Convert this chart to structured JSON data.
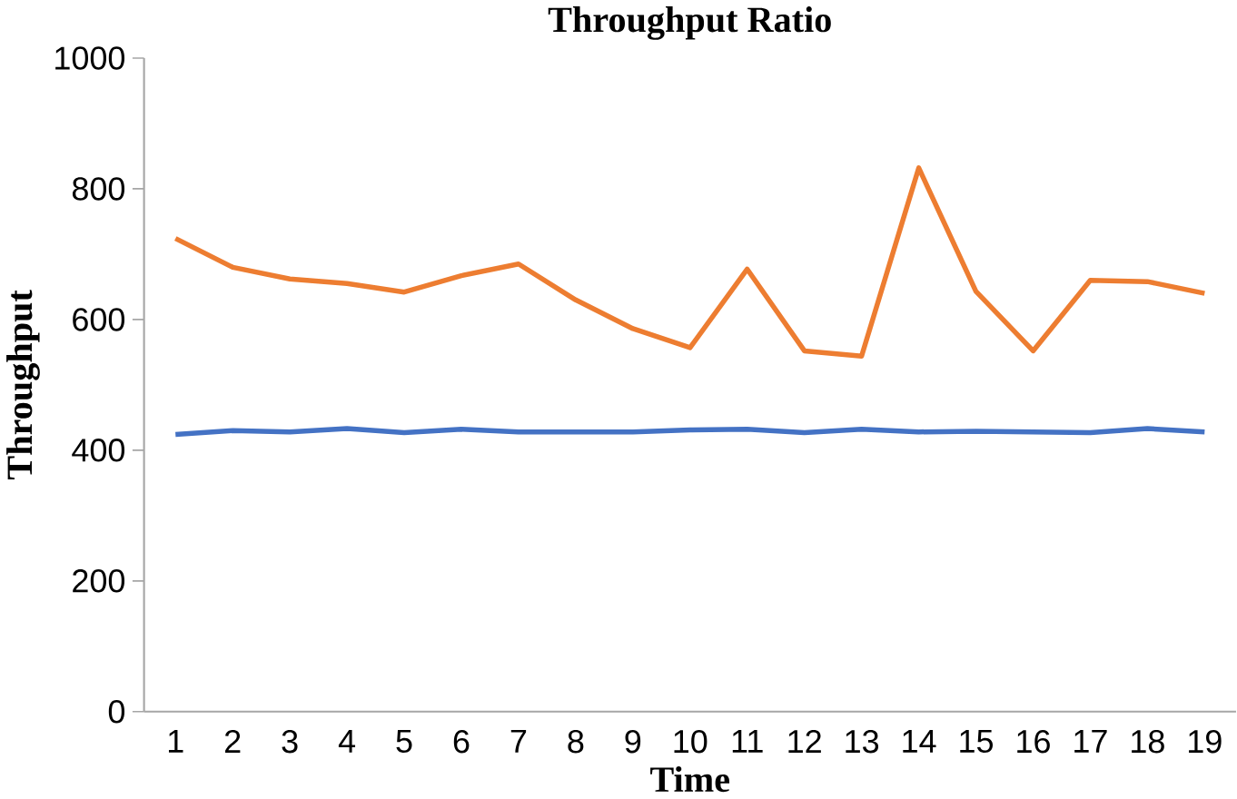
{
  "chart_data": {
    "type": "line",
    "title": "Throughput Ratio",
    "xlabel": "Time",
    "ylabel": "Throughput",
    "categories": [
      "1",
      "2",
      "3",
      "4",
      "5",
      "6",
      "7",
      "8",
      "9",
      "10",
      "11",
      "12",
      "13",
      "14",
      "15",
      "16",
      "17",
      "18",
      "19"
    ],
    "series": [
      {
        "color": "#4472c4",
        "values": [
          424,
          430,
          428,
          433,
          427,
          432,
          428,
          428,
          428,
          431,
          432,
          427,
          432,
          428,
          429,
          428,
          427,
          433,
          428
        ]
      },
      {
        "color": "#ed7d31",
        "values": [
          724,
          680,
          662,
          655,
          642,
          667,
          685,
          630,
          586,
          557,
          677,
          552,
          544,
          832,
          643,
          552,
          660,
          658,
          640
        ]
      }
    ],
    "ylim": [
      0,
      1000
    ],
    "yticks": [
      0,
      200,
      400,
      600,
      800,
      1000
    ],
    "grid": false,
    "legend": false,
    "marker": "none",
    "line_style": "solid"
  }
}
